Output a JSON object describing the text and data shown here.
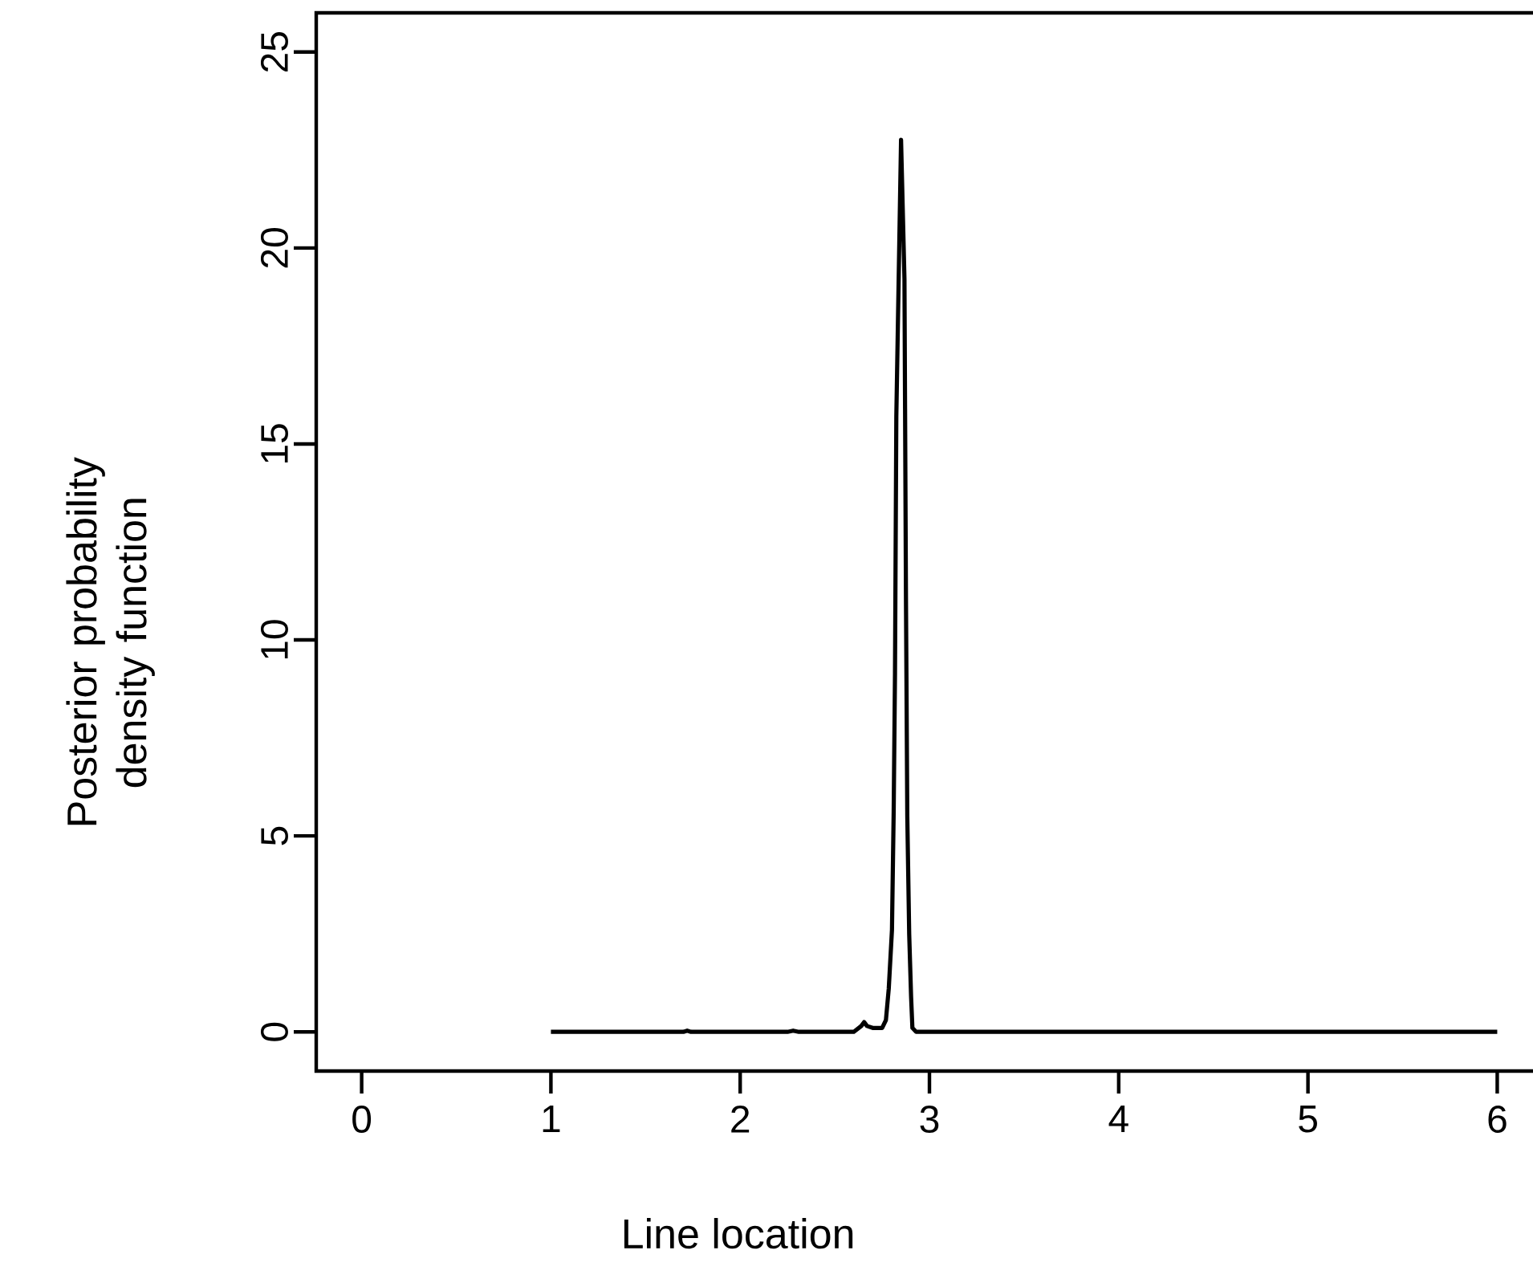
{
  "chart_data": {
    "type": "line",
    "xlabel": "Line location",
    "ylabel": "Posterior probability density function",
    "x": [
      1,
      1.7,
      1.72,
      1.74,
      2.25,
      2.28,
      2.31,
      2.6,
      2.64,
      2.655,
      2.67,
      2.7,
      2.75,
      2.77,
      2.785,
      2.802,
      2.811,
      2.818,
      2.825,
      2.85,
      2.868,
      2.876,
      2.883,
      2.893,
      2.903,
      2.91,
      2.93,
      6
    ],
    "series": [
      {
        "color": "#000000",
        "values": [
          0,
          0,
          0.03,
          0,
          0,
          0.03,
          0,
          0,
          0.15,
          0.25,
          0.15,
          0.1,
          0.1,
          0.3,
          1.1,
          2.6,
          5.6,
          9.15,
          15.7,
          22.76,
          19.2,
          11.0,
          5.5,
          2.5,
          0.9,
          0.1,
          0,
          0
        ]
      }
    ],
    "xlim": [
      -0.24,
      6.24
    ],
    "ylim": [
      -1,
      26
    ],
    "xticks": [
      0,
      1,
      2,
      3,
      4,
      5,
      6
    ],
    "yticks": [
      0,
      5,
      10,
      15,
      20,
      25
    ],
    "marker": "none",
    "line_style": "solid"
  }
}
